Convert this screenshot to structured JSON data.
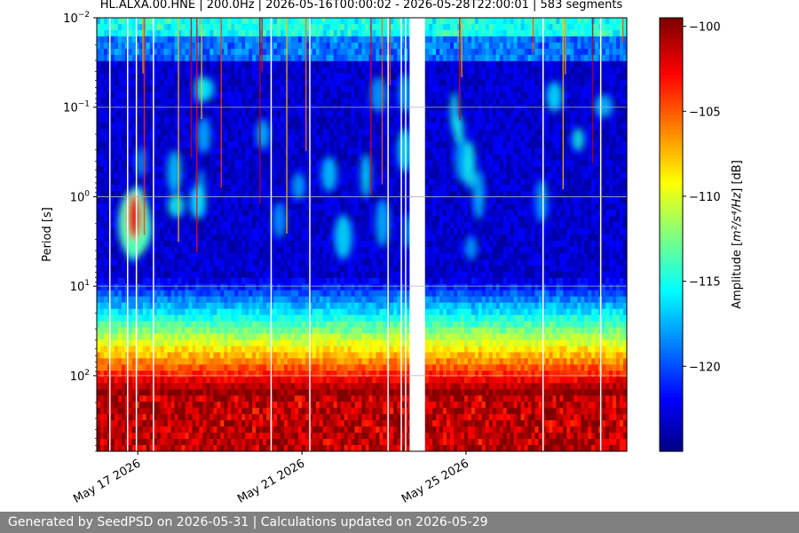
{
  "chart_data": {
    "type": "heatmap",
    "title": "HL.ALXA.00.HNE | 200.0Hz | 2026-05-16T00:00:02 - 2026-05-28T22:00:01 | 583 segments",
    "ylabel": "Period [s]",
    "ylabel_math": "s",
    "yscale": "log",
    "yinverted": true,
    "ylim": [
      0.01,
      700
    ],
    "y_ticks": [
      {
        "value": 0.01,
        "base": "10",
        "exp": "−2"
      },
      {
        "value": 0.1,
        "base": "10",
        "exp": "−1"
      },
      {
        "value": 1,
        "base": "10",
        "exp": "0"
      },
      {
        "value": 10,
        "base": "10",
        "exp": "1"
      },
      {
        "value": 100,
        "base": "10",
        "exp": "2"
      }
    ],
    "xlim": [
      "2026-05-16T00:00:02",
      "2026-05-28T22:00:01"
    ],
    "x_ticks": [
      {
        "date": "2026-05-17",
        "label": "May 17 2026"
      },
      {
        "date": "2026-05-21",
        "label": "May 21 2026"
      },
      {
        "date": "2026-05-25",
        "label": "May 25 2026"
      }
    ],
    "grid": true,
    "data_gap": {
      "start": "2026-05-23T15:00:00",
      "end": "2026-05-24T00:00:00"
    },
    "colorbar": {
      "label": "Amplitude",
      "label_unit_math": "m²/s⁴/Hz",
      "label_unit_db": "[dB]",
      "range": [
        -125,
        -99.5
      ],
      "ticks": [
        -100,
        -105,
        -110,
        -115,
        -120
      ],
      "colormap": "jet"
    },
    "features": {
      "noise_floor_db": -123,
      "high_frequency_band_db": -116,
      "long_period_band_db": -100,
      "microseism_peak": {
        "period_s": 2,
        "max_db": -102,
        "time": "2026-05-16T22:00:00"
      }
    }
  },
  "footer": {
    "text": "Generated by SeedPSD on 2026-05-31 | Calculations updated on 2026-05-29"
  }
}
